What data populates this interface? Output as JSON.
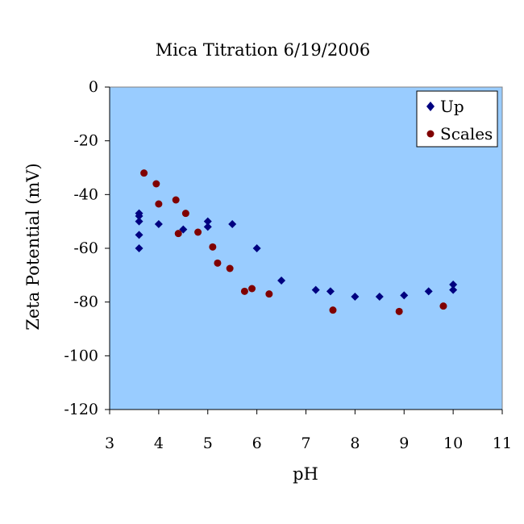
{
  "chart_data": {
    "type": "scatter",
    "title": "Mica Titration 6/19/2006",
    "xlabel": "pH",
    "ylabel": "Zeta Potential (mV)",
    "xlim": [
      3,
      11
    ],
    "ylim": [
      -120,
      0
    ],
    "x_ticks": [
      3,
      4,
      5,
      6,
      7,
      8,
      9,
      10,
      11
    ],
    "y_ticks": [
      0,
      -20,
      -40,
      -60,
      -80,
      -100,
      -120
    ],
    "grid": false,
    "plot_background": "#99ccff",
    "legend": {
      "position": "top-right"
    },
    "series": [
      {
        "name": "Up",
        "marker": "diamond",
        "color": "#000080",
        "points": [
          [
            3.6,
            -47
          ],
          [
            3.6,
            -48
          ],
          [
            3.6,
            -50
          ],
          [
            3.6,
            -55
          ],
          [
            3.6,
            -60
          ],
          [
            4.0,
            -51
          ],
          [
            4.5,
            -53
          ],
          [
            5.0,
            -50
          ],
          [
            5.0,
            -52
          ],
          [
            5.5,
            -51
          ],
          [
            6.0,
            -60
          ],
          [
            6.5,
            -72
          ],
          [
            7.2,
            -75.5
          ],
          [
            7.5,
            -76
          ],
          [
            8.0,
            -78
          ],
          [
            8.5,
            -78
          ],
          [
            9.0,
            -77.5
          ],
          [
            9.5,
            -76
          ],
          [
            10.0,
            -73.5
          ],
          [
            10.0,
            -75.5
          ]
        ]
      },
      {
        "name": "Scales",
        "marker": "circle",
        "color": "#800000",
        "points": [
          [
            3.7,
            -32
          ],
          [
            3.95,
            -36
          ],
          [
            4.0,
            -43.5
          ],
          [
            4.35,
            -42
          ],
          [
            4.4,
            -54.5
          ],
          [
            4.55,
            -47
          ],
          [
            4.8,
            -54
          ],
          [
            5.1,
            -59.5
          ],
          [
            5.2,
            -65.5
          ],
          [
            5.45,
            -67.5
          ],
          [
            5.75,
            -76
          ],
          [
            5.9,
            -75
          ],
          [
            6.25,
            -77
          ],
          [
            7.55,
            -83
          ],
          [
            8.9,
            -83.5
          ],
          [
            9.8,
            -81.5
          ]
        ]
      }
    ]
  }
}
